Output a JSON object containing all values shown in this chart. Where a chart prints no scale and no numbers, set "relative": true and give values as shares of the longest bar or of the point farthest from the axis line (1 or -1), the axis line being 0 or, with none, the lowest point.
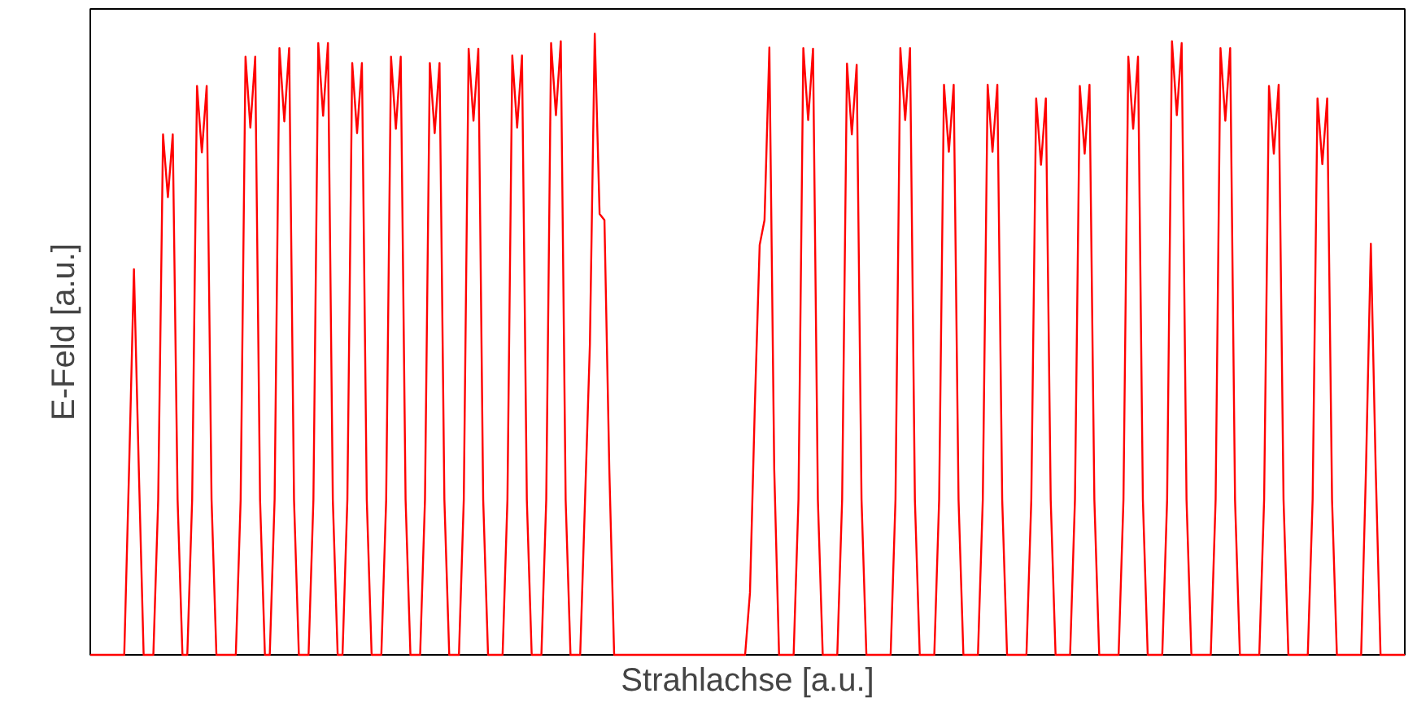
{
  "chart_data": {
    "type": "line",
    "relative": true,
    "xlabel": "Strahlachse [a.u.]",
    "ylabel": "E-Feld [a.u.]",
    "marker": "none",
    "line_style": "solid",
    "categories": [
      null,
      null,
      null,
      null,
      null,
      null,
      null,
      null,
      null,
      null,
      null,
      null,
      null,
      null,
      null,
      null,
      null,
      null,
      null,
      null,
      null,
      null,
      null,
      null,
      null,
      null,
      null,
      null,
      null,
      null,
      null,
      null,
      null,
      null,
      null,
      null,
      null,
      null,
      null,
      null,
      null,
      null,
      null,
      null,
      null,
      null,
      null,
      null,
      null,
      null,
      null,
      null,
      null,
      null,
      null,
      null,
      null,
      null,
      null,
      null,
      null,
      null,
      null,
      null,
      null,
      null,
      null,
      null,
      null,
      null,
      null,
      null,
      null,
      null,
      null,
      null,
      null,
      null,
      null,
      null,
      null,
      null,
      null,
      null,
      null,
      null,
      null,
      null,
      null,
      null,
      null,
      null,
      null,
      null,
      null,
      null,
      null,
      null,
      null,
      null,
      null,
      null,
      null,
      null,
      null,
      null,
      null,
      null,
      null,
      null,
      null,
      null,
      null,
      null,
      null,
      null,
      null,
      null,
      null,
      null,
      null,
      null,
      null,
      null,
      null,
      null,
      null,
      null,
      null,
      null,
      null,
      null,
      null,
      null,
      null,
      null,
      null,
      null,
      null,
      null,
      null,
      null,
      null,
      null,
      null,
      null,
      null,
      null,
      null,
      null,
      null,
      null,
      null,
      null,
      null,
      null,
      null,
      null,
      null,
      null,
      null,
      null,
      null,
      null,
      null,
      null,
      null,
      null,
      null,
      null,
      null,
      null,
      null,
      null,
      null,
      null,
      null,
      null,
      null,
      null,
      null,
      null,
      null,
      null,
      null,
      null,
      null,
      null,
      null,
      null,
      null,
      null,
      null,
      null,
      null,
      null,
      null,
      null,
      null,
      null,
      null,
      null,
      null,
      null,
      null,
      null,
      null,
      null,
      null,
      null,
      null,
      null,
      null,
      null,
      null,
      null,
      null,
      null,
      null,
      null,
      null,
      null,
      null,
      null,
      null,
      null,
      null,
      null,
      null,
      null,
      null,
      null,
      null,
      null,
      null,
      null,
      null,
      null,
      null,
      null,
      null,
      null,
      null,
      null,
      null,
      null,
      null,
      null,
      null,
      null,
      null,
      null,
      null,
      null,
      null,
      null,
      null,
      null,
      null,
      null,
      null,
      null,
      null,
      null,
      null,
      null,
      null,
      null,
      null,
      null,
      null,
      null
    ],
    "series": [
      {
        "color": "#ff0000",
        "values": [
          0,
          0,
          0,
          0,
          0,
          0,
          0,
          0,
          0.3,
          0.621,
          0.3,
          0,
          0,
          0,
          0.25,
          0.838,
          0.737,
          0.838,
          0.25,
          0,
          0,
          0.25,
          0.916,
          0.809,
          0.916,
          0.25,
          0,
          0,
          0,
          0,
          0,
          0.25,
          0.963,
          0.849,
          0.963,
          0.25,
          0,
          0,
          0.25,
          0.977,
          0.859,
          0.977,
          0.25,
          0,
          0,
          0,
          0.25,
          0.985,
          0.868,
          0.985,
          0.25,
          0,
          0,
          0.25,
          0.953,
          0.84,
          0.953,
          0.25,
          0,
          0,
          0,
          0.25,
          0.963,
          0.847,
          0.963,
          0.25,
          0,
          0,
          0,
          0.25,
          0.953,
          0.84,
          0.953,
          0.25,
          0,
          0,
          0,
          0.25,
          0.976,
          0.86,
          0.976,
          0.25,
          0,
          0,
          0,
          0,
          0.25,
          0.965,
          0.849,
          0.965,
          0.25,
          0,
          0,
          0,
          0.25,
          0.985,
          0.869,
          0.988,
          0.25,
          0,
          0,
          0,
          0.25,
          0.5,
          1.0,
          0.71,
          0.7,
          0.3,
          0,
          0,
          0,
          0,
          0,
          0,
          0,
          0,
          0,
          0,
          0,
          0,
          0,
          0,
          0,
          0,
          0,
          0,
          0,
          0,
          0,
          0,
          0,
          0,
          0,
          0,
          0,
          0,
          0.1,
          0.4,
          0.66,
          0.7,
          0.978,
          0.3,
          0,
          0,
          0,
          0,
          0.25,
          0.977,
          0.861,
          0.976,
          0.25,
          0,
          0,
          0,
          0,
          0.25,
          0.952,
          0.838,
          0.95,
          0.25,
          0,
          0,
          0,
          0,
          0,
          0,
          0.25,
          0.977,
          0.861,
          0.977,
          0.25,
          0,
          0,
          0,
          0,
          0.25,
          0.918,
          0.81,
          0.918,
          0.25,
          0,
          0,
          0,
          0,
          0.25,
          0.918,
          0.81,
          0.918,
          0.25,
          0,
          0,
          0,
          0,
          0,
          0.25,
          0.896,
          0.789,
          0.896,
          0.25,
          0,
          0,
          0,
          0,
          0.25,
          0.916,
          0.807,
          0.918,
          0.25,
          0,
          0,
          0,
          0,
          0,
          0.25,
          0.963,
          0.847,
          0.963,
          0.25,
          0,
          0,
          0,
          0,
          0.25,
          0.988,
          0.869,
          0.985,
          0.25,
          0,
          0,
          0,
          0,
          0,
          0.25,
          0.977,
          0.86,
          0.977,
          0.25,
          0,
          0,
          0,
          0,
          0,
          0.25,
          0.916,
          0.807,
          0.918,
          0.25,
          0,
          0,
          0,
          0,
          0,
          0.25,
          0.896,
          0.79,
          0.896,
          0.25,
          0,
          0,
          0,
          0,
          0,
          0,
          0.3,
          0.662,
          0.3,
          0,
          0,
          0,
          0,
          0,
          0
        ]
      }
    ]
  }
}
